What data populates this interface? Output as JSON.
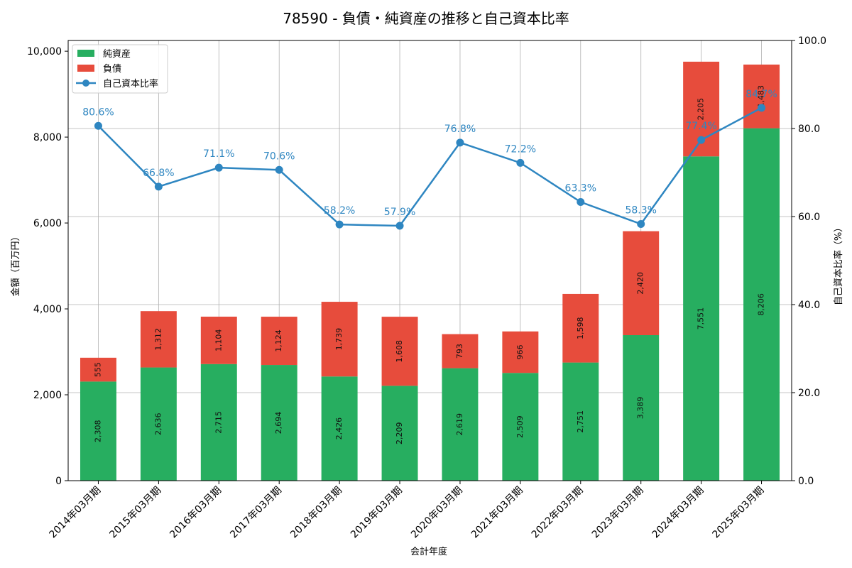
{
  "chart_data": {
    "type": "bar",
    "title": "78590 - 負債・純資産の推移と自己資本比率",
    "xlabel": "会計年度",
    "ylabel": "金額（百万円）",
    "y2label": "自己資本比率（%）",
    "ylim": [
      0,
      10250
    ],
    "y2lim": [
      0,
      100
    ],
    "yticks": [
      0,
      2000,
      4000,
      6000,
      8000,
      10000
    ],
    "ytick_labels": [
      "0",
      "2,000",
      "4,000",
      "6,000",
      "8,000",
      "10,000"
    ],
    "y2ticks": [
      0,
      20,
      40,
      60,
      80,
      100
    ],
    "y2tick_labels": [
      "0.0",
      "20.0",
      "40.0",
      "60.0",
      "80.0",
      "100.0"
    ],
    "grid": true,
    "legend_position": "top-left",
    "categories": [
      "2014年03月期",
      "2015年03月期",
      "2016年03月期",
      "2017年03月期",
      "2018年03月期",
      "2019年03月期",
      "2020年03月期",
      "2021年03月期",
      "2022年03月期",
      "2023年03月期",
      "2024年03月期",
      "2025年03月期"
    ],
    "series": [
      {
        "name": "純資産",
        "kind": "bar",
        "color": "#27ae60",
        "values": [
          2308,
          2636,
          2715,
          2694,
          2426,
          2209,
          2619,
          2509,
          2751,
          3389,
          7551,
          8206
        ],
        "labels": [
          "2,308",
          "2,636",
          "2,715",
          "2,694",
          "2,426",
          "2,209",
          "2,619",
          "2,509",
          "2,751",
          "3,389",
          "7,551",
          "8,206"
        ]
      },
      {
        "name": "負債",
        "kind": "bar",
        "color": "#e74c3c",
        "values": [
          555,
          1312,
          1104,
          1124,
          1739,
          1608,
          793,
          966,
          1598,
          2420,
          2205,
          1483
        ],
        "labels": [
          "555",
          "1,312",
          "1,104",
          "1,124",
          "1,739",
          "1,608",
          "793",
          "966",
          "1,598",
          "2,420",
          "2,205",
          "1,483"
        ]
      },
      {
        "name": "自己資本比率",
        "kind": "line",
        "axis": "right",
        "color": "#2e86c1",
        "values": [
          80.6,
          66.8,
          71.1,
          70.6,
          58.2,
          57.9,
          76.8,
          72.2,
          63.3,
          58.3,
          77.4,
          84.7
        ],
        "labels": [
          "80.6%",
          "66.8%",
          "71.1%",
          "70.6%",
          "58.2%",
          "57.9%",
          "76.8%",
          "72.2%",
          "63.3%",
          "58.3%",
          "77.4%",
          "84.7%"
        ]
      }
    ]
  }
}
